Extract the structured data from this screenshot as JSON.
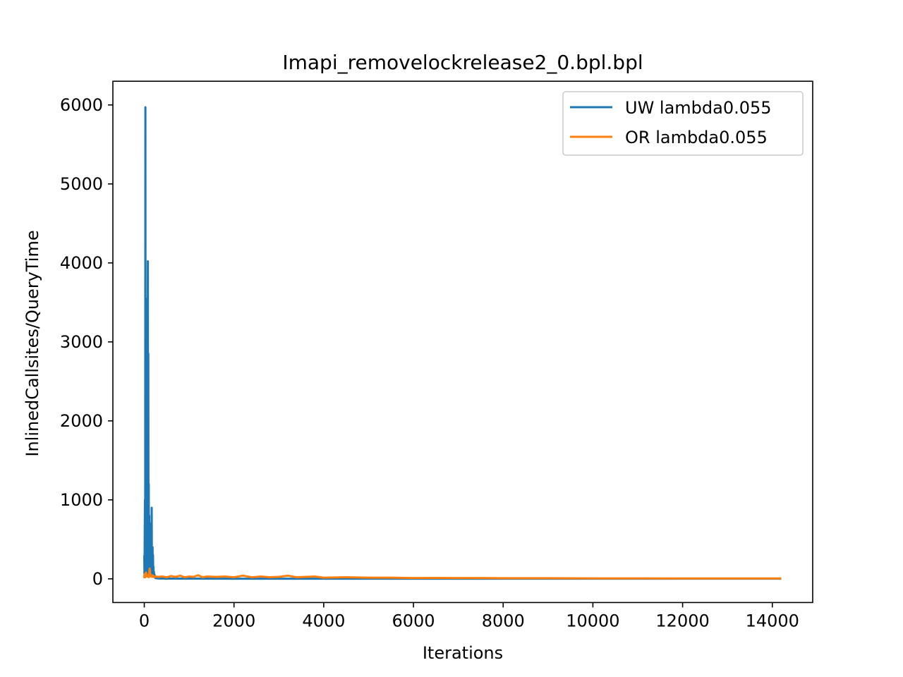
{
  "chart_data": {
    "type": "line",
    "title": "Imapi_removelockrelease2_0.bpl.bpl",
    "xlabel": "Iterations",
    "ylabel": "InlinedCallsites/QueryTime",
    "xlim": [
      -700,
      14900
    ],
    "ylim": [
      -300,
      6300
    ],
    "xticks": [
      0,
      2000,
      4000,
      6000,
      8000,
      10000,
      12000,
      14000
    ],
    "yticks": [
      0,
      1000,
      2000,
      3000,
      4000,
      5000,
      6000
    ],
    "legend_position": "top-right",
    "grid": false,
    "series": [
      {
        "name": "UW lambda0.055",
        "color": "#1f77b4",
        "x": [
          0,
          5,
          10,
          15,
          20,
          25,
          30,
          35,
          40,
          45,
          50,
          55,
          60,
          65,
          70,
          75,
          80,
          85,
          90,
          95,
          100,
          105,
          110,
          115,
          120,
          125,
          130,
          135,
          140,
          145,
          150,
          155,
          160,
          165,
          170,
          175,
          180,
          185,
          190,
          195,
          200,
          205,
          210,
          215,
          220,
          225,
          230,
          235,
          240,
          245,
          250,
          255,
          260,
          265,
          270,
          275,
          280,
          290,
          300,
          320,
          350,
          400,
          500,
          700,
          1000,
          2000,
          4000,
          8000,
          14200
        ],
        "y": [
          300,
          20,
          600,
          1000,
          80,
          5970,
          150,
          2850,
          60,
          400,
          1500,
          100,
          2850,
          300,
          3550,
          50,
          4020,
          200,
          2850,
          100,
          1200,
          50,
          800,
          150,
          600,
          80,
          450,
          40,
          300,
          120,
          700,
          60,
          300,
          900,
          100,
          250,
          50,
          400,
          80,
          300,
          60,
          150,
          40,
          90,
          30,
          60,
          20,
          40,
          15,
          30,
          10,
          20,
          10,
          15,
          8,
          12,
          8,
          6,
          5,
          5,
          4,
          4,
          3,
          3,
          3,
          2,
          2,
          2,
          2
        ]
      },
      {
        "name": "OR lambda0.055",
        "color": "#ff7f0e",
        "x": [
          0,
          10,
          20,
          40,
          60,
          80,
          100,
          120,
          140,
          160,
          180,
          200,
          220,
          250,
          300,
          400,
          500,
          600,
          700,
          800,
          900,
          1000,
          1100,
          1200,
          1300,
          1400,
          1600,
          1800,
          2000,
          2200,
          2400,
          2600,
          2800,
          3000,
          3200,
          3400,
          3600,
          3800,
          4000,
          4500,
          5000,
          5500,
          6000,
          6500,
          7000,
          7500,
          8000,
          9000,
          10000,
          11000,
          12000,
          13000,
          14200
        ],
        "y": [
          10,
          60,
          20,
          80,
          30,
          40,
          20,
          130,
          30,
          50,
          25,
          40,
          20,
          30,
          25,
          30,
          20,
          35,
          25,
          40,
          20,
          30,
          25,
          45,
          20,
          30,
          25,
          30,
          20,
          40,
          20,
          30,
          20,
          25,
          40,
          20,
          25,
          30,
          15,
          20,
          15,
          15,
          10,
          12,
          10,
          10,
          8,
          8,
          6,
          6,
          5,
          5,
          5
        ]
      }
    ]
  }
}
